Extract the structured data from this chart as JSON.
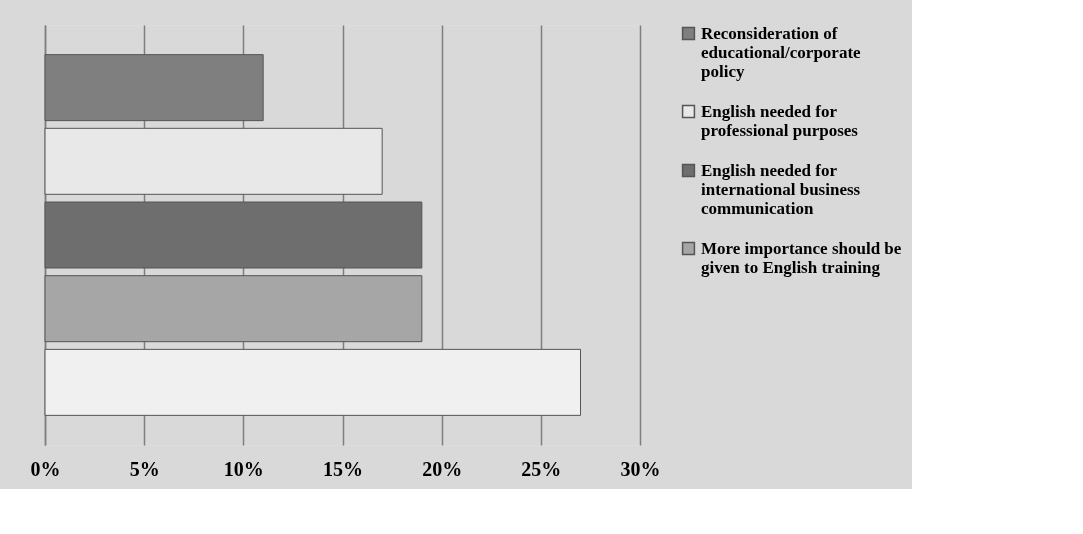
{
  "chart_data": {
    "type": "bar",
    "orientation": "horizontal",
    "categories": [
      null
    ],
    "series": [
      {
        "name": "Reconsideration of educational/corporate policy",
        "color": "#7f7f7f",
        "values": [
          11
        ]
      },
      {
        "name": "English needed for professional purposes",
        "color": "#e8e8e8",
        "values": [
          17
        ]
      },
      {
        "name": "English needed for international business communication",
        "color": "#6e6e6e",
        "values": [
          19
        ]
      },
      {
        "name": "More importance should be given to English training",
        "color": "#a6a6a6",
        "values": [
          19
        ]
      },
      {
        "color": "#f0f0f0",
        "values": [
          27
        ]
      }
    ],
    "xlim": [
      0,
      30
    ],
    "xticks": [
      {
        "value": 0,
        "label": "0%"
      },
      {
        "value": 5,
        "label": "5%"
      },
      {
        "value": 10,
        "label": "10%"
      },
      {
        "value": 15,
        "label": "15%"
      },
      {
        "value": 20,
        "label": "20%"
      },
      {
        "value": 25,
        "label": "25%"
      },
      {
        "value": 30,
        "label": "30%"
      }
    ],
    "grid": "x",
    "legend": "right"
  }
}
